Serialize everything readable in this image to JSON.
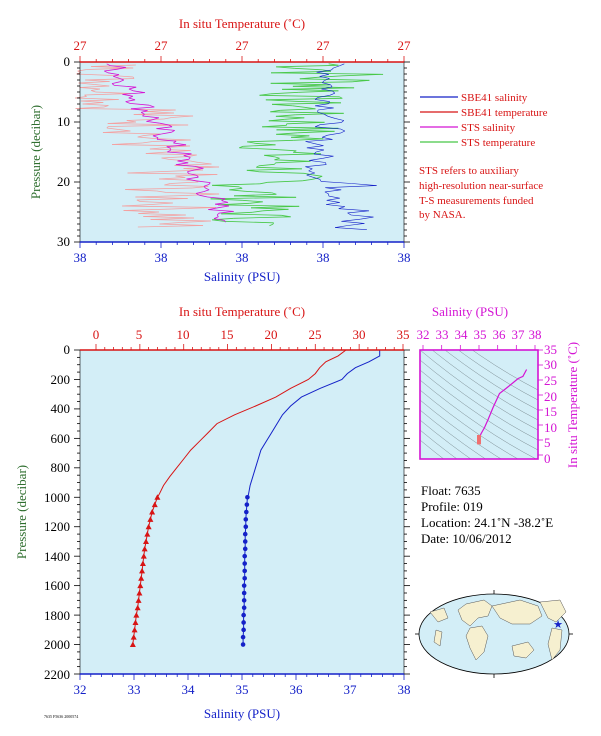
{
  "colors": {
    "panel_bg": "#d3eef7",
    "red": "#d81414",
    "blue": "#1421c8",
    "magenta": "#d414d4",
    "green": "#48c848",
    "pink": "#f4a0a0",
    "axis_green": "#2e6e2e"
  },
  "top_panel": {
    "title_top": "In situ Temperature (˚C)",
    "xlabel": "Salinity (PSU)",
    "ylabel": "Pressure (decibar)",
    "temp_ticks": [
      "27",
      "27",
      "27",
      "27",
      "27"
    ],
    "sal_ticks": [
      "38",
      "38",
      "38",
      "38",
      "38"
    ],
    "pressure_ticks": [
      "0",
      "10",
      "20",
      "30"
    ]
  },
  "legend": {
    "items": [
      {
        "label": "SBE41 salinity",
        "color": "#1421c8"
      },
      {
        "label": "SBE41 temperature",
        "color": "#d81414"
      },
      {
        "label": "STS salinity",
        "color": "#d414d4"
      },
      {
        "label": "STS temperature",
        "color": "#48c848"
      }
    ],
    "note_lines": [
      "STS refers to auxiliary",
      "high-resolution near-surface",
      "T-S measurements funded",
      "by NASA."
    ]
  },
  "main_panel": {
    "title_top": "In situ Temperature (˚C)",
    "xlabel": "Salinity (PSU)",
    "ylabel": "Pressure (decibar)",
    "temp_ticks": [
      "0",
      "5",
      "10",
      "15",
      "20",
      "25",
      "30",
      "35"
    ],
    "sal_ticks": [
      "32",
      "33",
      "34",
      "35",
      "36",
      "37",
      "38"
    ],
    "pressure_ticks": [
      "0",
      "200",
      "400",
      "600",
      "800",
      "1000",
      "1200",
      "1400",
      "1600",
      "1800",
      "2000",
      "2200"
    ]
  },
  "ts_panel": {
    "title_top": "Salinity (PSU)",
    "ylabel": "In situ Temperature (˚C)",
    "sal_ticks": [
      "32",
      "33",
      "34",
      "35",
      "36",
      "37",
      "38"
    ],
    "temp_ticks": [
      "0",
      "5",
      "10",
      "15",
      "20",
      "25",
      "30",
      "35"
    ]
  },
  "float_info": {
    "float": "Float:  7635",
    "profile": "Profile:  019",
    "location": "Location:  24.1˚N  -38.2˚E",
    "date": "Date:  10/06/2012"
  },
  "footer_text": "7635 F5636 2000574",
  "chart_data": [
    {
      "type": "line",
      "name": "main-profile",
      "title": "",
      "x_top_label": "In situ Temperature (˚C)",
      "x_bottom_label": "Salinity (PSU)",
      "ylabel": "Pressure (decibar)",
      "temp_range": [
        0,
        35
      ],
      "sal_range": [
        32,
        38
      ],
      "pressure_range": [
        0,
        2200
      ],
      "y_inverted": true,
      "series": [
        {
          "name": "SBE41 temperature",
          "color": "#d81414",
          "pressure": [
            0,
            40,
            80,
            120,
            160,
            200,
            260,
            320,
            380,
            440,
            500,
            560,
            620,
            680,
            740,
            800,
            860,
            920,
            980,
            1000
          ],
          "values": [
            28.5,
            27.6,
            26.2,
            25.5,
            25.0,
            24.2,
            22.2,
            20.5,
            18.2,
            15.8,
            13.8,
            12.8,
            11.8,
            10.8,
            10.0,
            9.2,
            8.4,
            7.7,
            7.2,
            7.0
          ]
        },
        {
          "name": "SBE41 salinity",
          "color": "#1421c8",
          "pressure": [
            0,
            40,
            80,
            120,
            160,
            200,
            260,
            320,
            380,
            440,
            500,
            560,
            620,
            680,
            740,
            800,
            860,
            920,
            980,
            1000
          ],
          "values": [
            37.55,
            37.55,
            37.35,
            37.1,
            36.95,
            36.85,
            36.45,
            36.1,
            35.9,
            35.75,
            35.65,
            35.55,
            35.45,
            35.35,
            35.3,
            35.25,
            35.2,
            35.15,
            35.12,
            35.1
          ]
        },
        {
          "name": "SBE41 temperature (deep samples)",
          "color": "#d81414",
          "marker": "triangle",
          "pressure": [
            1000,
            1050,
            1100,
            1150,
            1200,
            1250,
            1300,
            1350,
            1400,
            1450,
            1500,
            1550,
            1600,
            1650,
            1700,
            1750,
            1800,
            1850,
            1900,
            1950,
            2000
          ],
          "values": [
            7.0,
            6.7,
            6.4,
            6.2,
            6.0,
            5.85,
            5.7,
            5.55,
            5.45,
            5.35,
            5.25,
            5.15,
            5.05,
            4.95,
            4.85,
            4.75,
            4.6,
            4.5,
            4.4,
            4.3,
            4.2
          ]
        },
        {
          "name": "SBE41 salinity (deep samples)",
          "color": "#1421c8",
          "marker": "circle",
          "pressure": [
            1000,
            1050,
            1100,
            1150,
            1200,
            1250,
            1300,
            1350,
            1400,
            1450,
            1500,
            1550,
            1600,
            1650,
            1700,
            1750,
            1800,
            1850,
            1900,
            1950,
            2000
          ],
          "values": [
            35.1,
            35.09,
            35.08,
            35.07,
            35.07,
            35.06,
            35.06,
            35.06,
            35.05,
            35.05,
            35.05,
            35.05,
            35.04,
            35.04,
            35.04,
            35.04,
            35.03,
            35.03,
            35.03,
            35.02,
            35.02
          ]
        }
      ]
    },
    {
      "type": "line",
      "name": "ts-diagram",
      "title": "",
      "x_top_label": "Salinity (PSU)",
      "ylabel": "In situ Temperature (˚C)",
      "sal_range": [
        32,
        38
      ],
      "temp_range": [
        0,
        35
      ],
      "series": [
        {
          "name": "T-S curve",
          "color": "#d414d4",
          "salinity": [
            35.0,
            35.02,
            35.05,
            35.1,
            35.3,
            35.5,
            35.75,
            36.1,
            36.45,
            36.85,
            37.1,
            37.35,
            37.55
          ],
          "temperature": [
            4.2,
            5.0,
            6.0,
            7.0,
            9.2,
            12.0,
            15.8,
            20.5,
            22.2,
            24.2,
            25.5,
            26.2,
            28.5
          ]
        }
      ]
    },
    {
      "type": "line",
      "name": "near-surface",
      "title": "",
      "x_top_label": "In situ Temperature (˚C)",
      "x_bottom_label": "Salinity (PSU)",
      "ylabel": "Pressure (decibar)",
      "pressure_range": [
        0,
        30
      ],
      "y_inverted": true,
      "series": [
        {
          "name": "STS salinity",
          "color": "#d414d4",
          "pressure": [
            0.3,
            1,
            2,
            3,
            4,
            5,
            6,
            7,
            8,
            9,
            10,
            11,
            12,
            13,
            14,
            15,
            16,
            17,
            18,
            19,
            20,
            21,
            22,
            23,
            24,
            25,
            26,
            27
          ],
          "values_px": null,
          "values": [
            37.6,
            37.9,
            37.7,
            37.95,
            37.8,
            38.0,
            37.75,
            37.9,
            37.7,
            37.85,
            37.95,
            37.8,
            38.0,
            37.85,
            38.1,
            37.9,
            38.05,
            38.2,
            38.0,
            38.35,
            38.1,
            38.2,
            38.05,
            38.4,
            38.3,
            38.5,
            38.6,
            38.7
          ]
        }
      ]
    }
  ]
}
